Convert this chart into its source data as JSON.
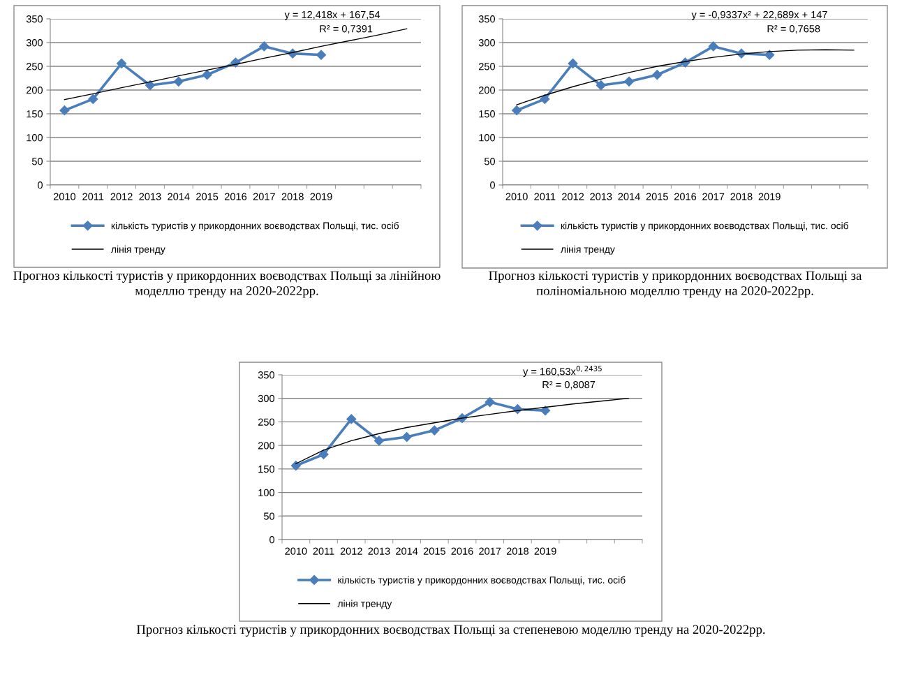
{
  "chart_data": [
    {
      "type": "line",
      "categories": [
        "2010",
        "2011",
        "2012",
        "2013",
        "2014",
        "2015",
        "2016",
        "2017",
        "2018",
        "2019",
        null,
        null,
        null
      ],
      "ylim": [
        0,
        350
      ],
      "yticks": [
        0,
        50,
        100,
        150,
        200,
        250,
        300,
        350
      ],
      "grid": "y",
      "legend": "bottom",
      "series": [
        {
          "name": "кількість туристів у прикордонних воєводствах Польщі, тис. осіб",
          "color": "#4a7ebb",
          "marker": "diamond",
          "line_style": "solid",
          "values": [
            157,
            181,
            256,
            210,
            218,
            232,
            258,
            292,
            277,
            274,
            null,
            null,
            null
          ]
        },
        {
          "name": "лінія тренду",
          "color": "#000000",
          "marker": "none",
          "line_style": "solid",
          "values": [
            180,
            192,
            205,
            217,
            230,
            242,
            254,
            267,
            279,
            292,
            304,
            316,
            329
          ]
        }
      ],
      "annotations": [
        "y = 12,418x + 167,54",
        "R² = 0,7391",
        "Прогноз кількості туристів у прикордонних воєводствах Польщі за лінійною моделлю тренду на 2020-2022рр."
      ]
    },
    {
      "type": "line",
      "categories": [
        "2010",
        "2011",
        "2012",
        "2013",
        "2014",
        "2015",
        "2016",
        "2017",
        "2018",
        "2019",
        null,
        null,
        null
      ],
      "ylim": [
        0,
        350
      ],
      "yticks": [
        0,
        50,
        100,
        150,
        200,
        250,
        300,
        350
      ],
      "grid": "y",
      "legend": "bottom",
      "series": [
        {
          "name": "кількість туристів у прикордонних воєводствах Польщі, тис. осіб",
          "color": "#4a7ebb",
          "marker": "diamond",
          "line_style": "solid",
          "values": [
            157,
            181,
            256,
            210,
            218,
            232,
            258,
            292,
            277,
            274,
            null,
            null,
            null
          ]
        },
        {
          "name": "лінія тренду",
          "color": "#000000",
          "marker": "none",
          "line_style": "solid",
          "values": [
            169,
            189,
            207,
            223,
            237,
            250,
            260,
            269,
            276,
            281,
            284,
            285,
            284
          ]
        }
      ],
      "annotations": [
        "y = -0,9337x² + 22,689x + 147",
        "R² = 0,7658",
        "Прогноз кількості туристів у прикордонних воєводствах Польщі за поліноміальною моделлю тренду на 2020-2022рр."
      ]
    },
    {
      "type": "line",
      "categories": [
        "2010",
        "2011",
        "2012",
        "2013",
        "2014",
        "2015",
        "2016",
        "2017",
        "2018",
        "2019",
        null,
        null,
        null
      ],
      "ylim": [
        0,
        350
      ],
      "yticks": [
        0,
        50,
        100,
        150,
        200,
        250,
        300,
        350
      ],
      "grid": "y",
      "legend": "bottom",
      "series": [
        {
          "name": "кількість туристів у прикордонних воєводствах Польщі, тис. осіб",
          "color": "#4a7ebb",
          "marker": "diamond",
          "line_style": "solid",
          "values": [
            157,
            181,
            256,
            210,
            218,
            232,
            258,
            292,
            277,
            274,
            null,
            null,
            null
          ]
        },
        {
          "name": "лінія тренду",
          "color": "#000000",
          "marker": "none",
          "line_style": "solid",
          "values": [
            161,
            190,
            210,
            225,
            238,
            248,
            258,
            266,
            274,
            281,
            288,
            294,
            300
          ]
        }
      ],
      "annotations": [
        "y = 160,53x$^{0,2435}$",
        "R² = 0,8087",
        "Прогноз кількості туристів у прикордонних воєводствах Польщі за степеневою моделлю тренду на 2020-2022рр."
      ]
    }
  ]
}
